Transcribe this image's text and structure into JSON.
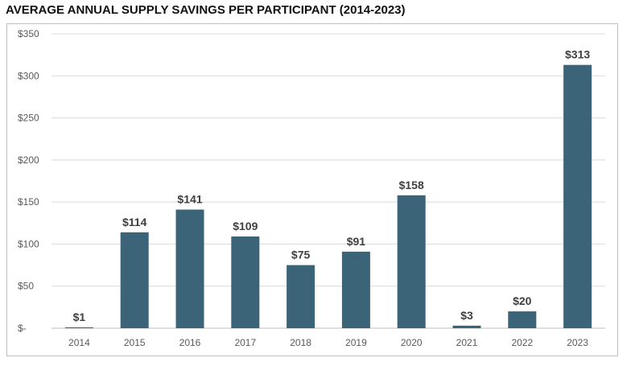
{
  "chart_data": {
    "type": "bar",
    "title": "AVERAGE ANNUAL SUPPLY SAVINGS PER PARTICIPANT (2014-2023)",
    "categories": [
      "2014",
      "2015",
      "2016",
      "2017",
      "2018",
      "2019",
      "2020",
      "2021",
      "2022",
      "2023"
    ],
    "values": [
      1,
      114,
      141,
      109,
      75,
      91,
      158,
      3,
      20,
      313
    ],
    "data_labels": [
      "$1",
      "$114",
      "$141",
      "$109",
      "$75",
      "$91",
      "$158",
      "$3",
      "$20",
      "$313"
    ],
    "y_ticks": [
      {
        "value": 0,
        "label": "$-"
      },
      {
        "value": 50,
        "label": "$50"
      },
      {
        "value": 100,
        "label": "$100"
      },
      {
        "value": 150,
        "label": "$150"
      },
      {
        "value": 200,
        "label": "$200"
      },
      {
        "value": 250,
        "label": "$250"
      },
      {
        "value": 300,
        "label": "$300"
      },
      {
        "value": 350,
        "label": "$350"
      }
    ],
    "xlabel": "",
    "ylabel": "",
    "ylim": [
      0,
      350
    ],
    "grid": true,
    "legend": "none",
    "bar_color": "#3b6478",
    "grid_color": "#d9d9d9"
  }
}
